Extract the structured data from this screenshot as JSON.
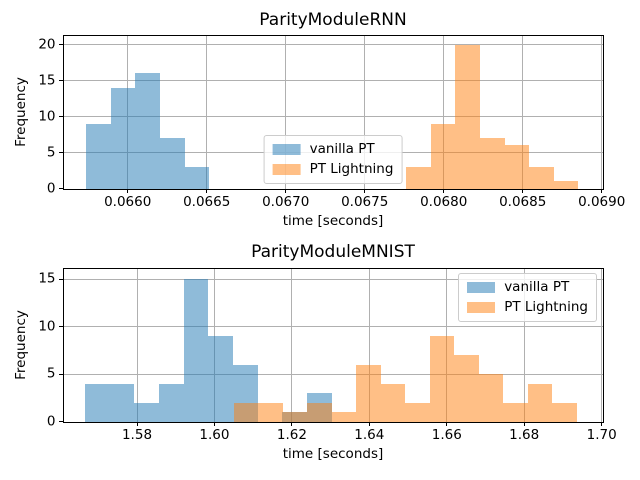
{
  "figure": {
    "background": "#ffffff"
  },
  "colors": {
    "vanilla_pt": "#1f77b4",
    "pt_lightning": "#ff7f0e",
    "fill_alpha": 0.5,
    "grid": "#b0b0b0",
    "frame": "#000000",
    "legend_border": "#cccccc",
    "text": "#000000"
  },
  "legend": {
    "items": [
      {
        "label": "vanilla PT",
        "color": "#1f77b4"
      },
      {
        "label": "PT Lightning",
        "color": "#ff7f0e"
      }
    ]
  },
  "chart_data": [
    {
      "type": "histogram",
      "title": "ParityModuleRNN",
      "xlabel": "time [seconds]",
      "ylabel": "Frequency",
      "grid": true,
      "legend_position": "lower center",
      "xlim": [
        0.065594,
        0.069005
      ],
      "ylim": [
        0,
        21.2
      ],
      "xticks": [
        {
          "value": 0.066,
          "label": "0.0660"
        },
        {
          "value": 0.0665,
          "label": "0.0665"
        },
        {
          "value": 0.067,
          "label": "0.0670"
        },
        {
          "value": 0.0675,
          "label": "0.0675"
        },
        {
          "value": 0.068,
          "label": "0.0680"
        },
        {
          "value": 0.0685,
          "label": "0.0685"
        },
        {
          "value": 0.069,
          "label": "0.0690"
        }
      ],
      "yticks": [
        0,
        5,
        10,
        15,
        20
      ],
      "series": [
        {
          "name": "vanilla PT",
          "color": "#1f77b4",
          "bin_start": 0.065736,
          "bin_width": 0.000156,
          "counts": [
            9,
            14,
            16,
            7,
            3
          ]
        },
        {
          "name": "PT Lightning",
          "color": "#ff7f0e",
          "bin_start": 0.067763,
          "bin_width": 0.0001555,
          "counts": [
            3,
            9,
            20,
            7,
            6,
            3,
            1
          ]
        }
      ]
    },
    {
      "type": "histogram",
      "title": "ParityModuleMNIST",
      "xlabel": "time [seconds]",
      "ylabel": "Frequency",
      "grid": true,
      "legend_position": "upper right",
      "xlim": [
        1.56102,
        1.70021
      ],
      "ylim": [
        0,
        16.14
      ],
      "xticks": [
        {
          "value": 1.58,
          "label": "1.58"
        },
        {
          "value": 1.6,
          "label": "1.60"
        },
        {
          "value": 1.62,
          "label": "1.62"
        },
        {
          "value": 1.64,
          "label": "1.64"
        },
        {
          "value": 1.66,
          "label": "1.66"
        },
        {
          "value": 1.68,
          "label": "1.68"
        },
        {
          "value": 1.7,
          "label": "1.70"
        }
      ],
      "yticks": [
        0,
        5,
        10,
        15
      ],
      "series": [
        {
          "name": "vanilla PT",
          "color": "#1f77b4",
          "bin_start": 1.5666,
          "bin_width": 0.00637,
          "counts": [
            4,
            4,
            2,
            4,
            15,
            9,
            6,
            0,
            1,
            3
          ]
        },
        {
          "name": "PT Lightning",
          "color": "#ff7f0e",
          "bin_start": 1.605,
          "bin_width": 0.00633,
          "counts": [
            2,
            2,
            1,
            2,
            1,
            6,
            4,
            2,
            9,
            7,
            5,
            2,
            4,
            2
          ]
        }
      ]
    }
  ]
}
